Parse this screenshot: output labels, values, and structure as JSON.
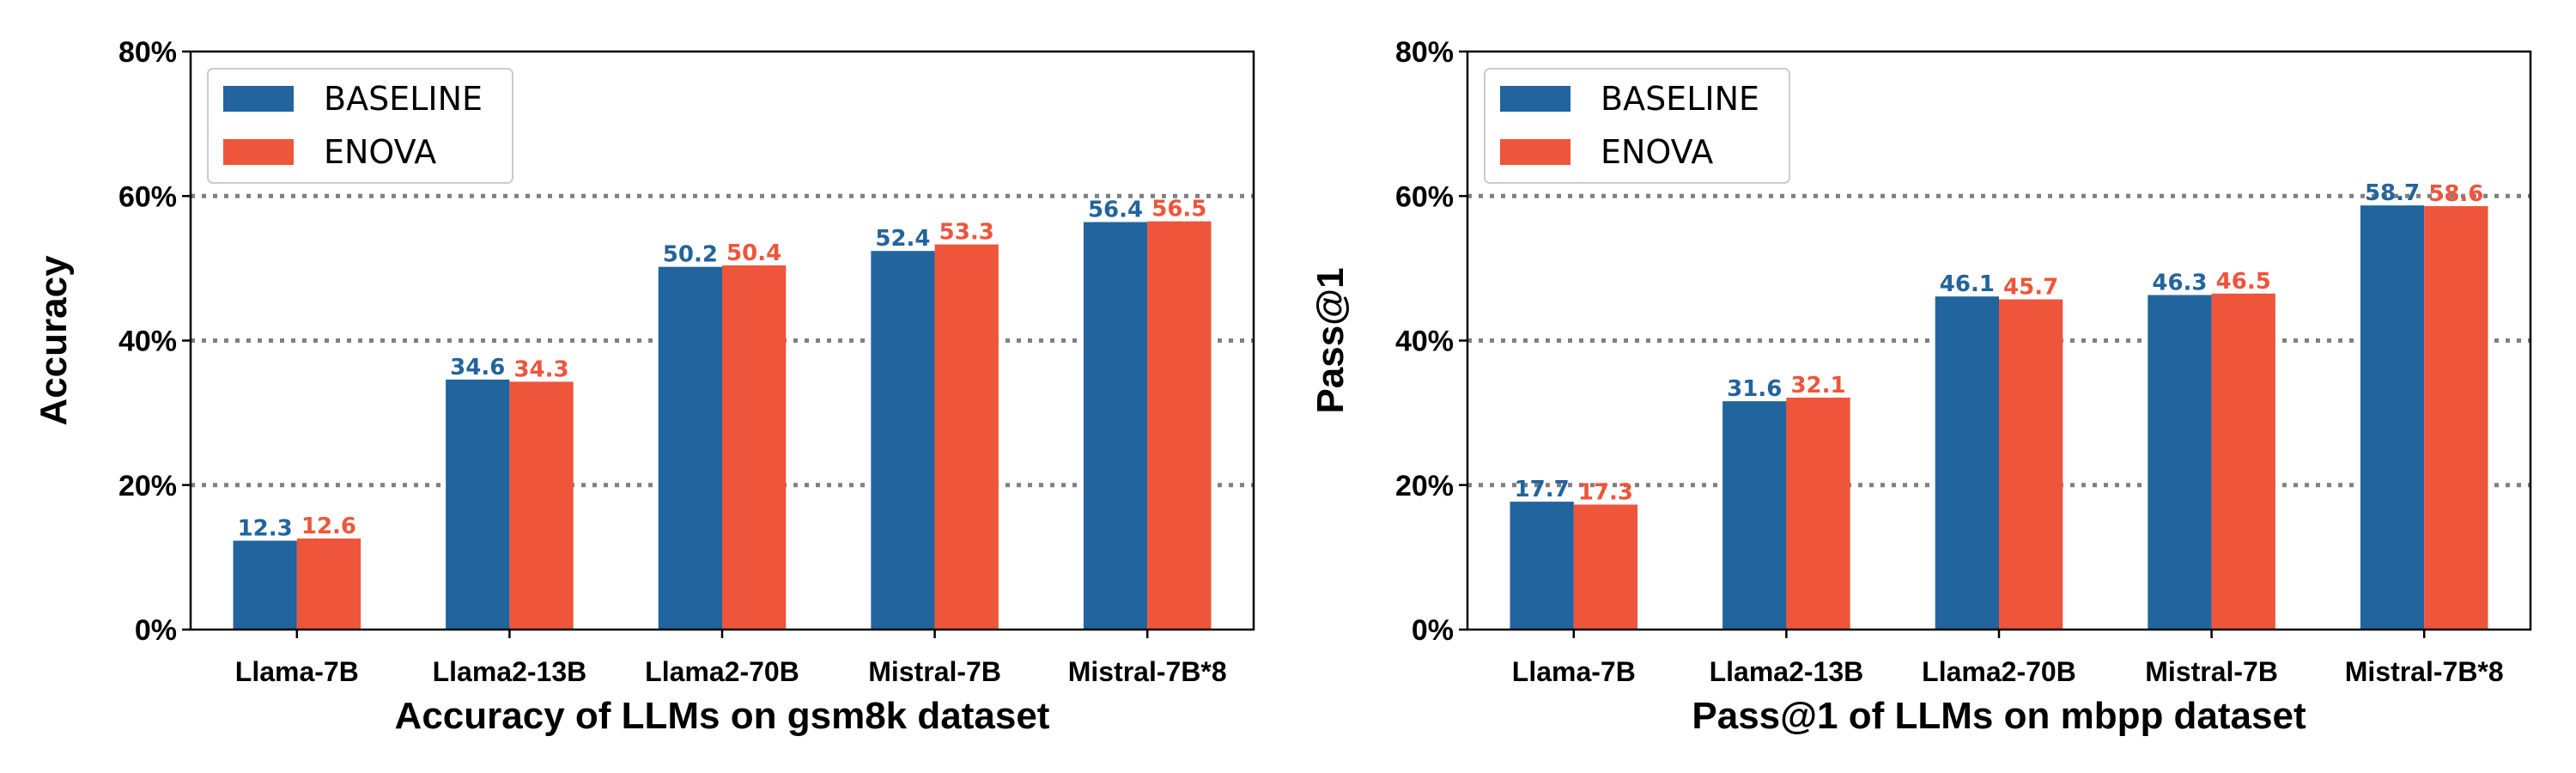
{
  "colors": {
    "baseline": "#22649D",
    "enova": "#EE553B",
    "grid": "#808080"
  },
  "chart_data": [
    {
      "type": "bar",
      "title": "",
      "xlabel": "Accuracy of LLMs on gsm8k dataset",
      "ylabel": "Accuracy",
      "ylim": [
        0,
        80
      ],
      "yticks": [
        "0%",
        "20%",
        "40%",
        "60%",
        "80%"
      ],
      "categories": [
        "Llama-7B",
        "Llama2-13B",
        "Llama2-70B",
        "Mistral-7B",
        "Mistral-7B*8"
      ],
      "legend_position": "top-left",
      "grid": "horizontal-dotted",
      "series": [
        {
          "name": "BASELINE",
          "values": [
            12.3,
            34.6,
            50.2,
            52.4,
            56.4
          ],
          "labels": [
            "12.3",
            "34.6",
            "50.2",
            "52.4",
            "56.4"
          ]
        },
        {
          "name": "ENOVA",
          "values": [
            12.6,
            34.3,
            50.4,
            53.3,
            56.5
          ],
          "labels": [
            "12.6",
            "34.3",
            "50.4",
            "53.3",
            "56.5"
          ]
        }
      ]
    },
    {
      "type": "bar",
      "title": "",
      "xlabel": "Pass@1 of LLMs on mbpp dataset",
      "ylabel": "Pass@1",
      "ylim": [
        0,
        80
      ],
      "yticks": [
        "0%",
        "20%",
        "40%",
        "60%",
        "80%"
      ],
      "categories": [
        "Llama-7B",
        "Llama2-13B",
        "Llama2-70B",
        "Mistral-7B",
        "Mistral-7B*8"
      ],
      "legend_position": "top-left",
      "grid": "horizontal-dotted",
      "series": [
        {
          "name": "BASELINE",
          "values": [
            17.7,
            31.6,
            46.1,
            46.3,
            58.7
          ],
          "labels": [
            "17.7",
            "31.6",
            "46.1",
            "46.3",
            "58.7"
          ]
        },
        {
          "name": "ENOVA",
          "values": [
            17.3,
            32.1,
            45.7,
            46.5,
            58.6
          ],
          "labels": [
            "17.3",
            "32.1",
            "45.7",
            "46.5",
            "58.6"
          ]
        }
      ]
    }
  ]
}
